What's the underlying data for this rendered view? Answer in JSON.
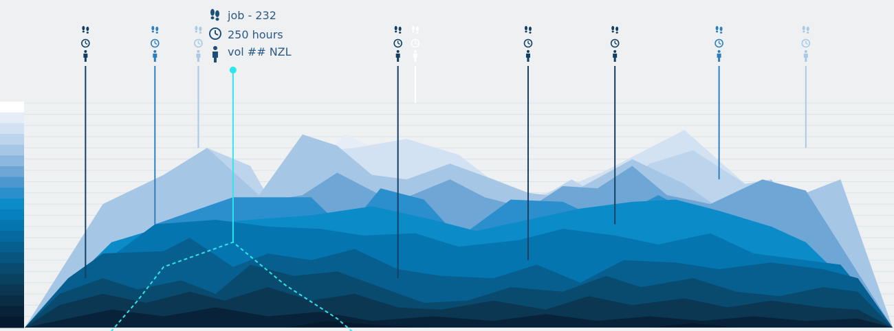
{
  "colors": {
    "background": "#eef0f2",
    "highlight": "#2ee6ee",
    "marker_dark": "#123f63",
    "marker_mid": "#2f7fbf",
    "marker_light": "#a9c9e6",
    "marker_white": "#ffffff",
    "palette": [
      "#ffffff",
      "#e5edf7",
      "#d2e2f2",
      "#bcd4ec",
      "#a6c6e6",
      "#8cb7de",
      "#6ea6d6",
      "#4d97cf",
      "#2a8fcc",
      "#0b8cc8",
      "#0680bf",
      "#0575b0",
      "#066aa0",
      "#075f90",
      "#08557f",
      "#094b6f",
      "#0a4160",
      "#0b3752",
      "#0a2d45",
      "#082339",
      "#051a2c"
    ]
  },
  "icons": {
    "footsteps": "footsteps-icon",
    "clock": "clock-icon",
    "person": "person-icon"
  },
  "tooltip": {
    "job": "job - 232",
    "hours": "250 hours",
    "volume": "vol ## NZL"
  },
  "chart_data": {
    "type": "area",
    "title": "",
    "xlabel": "",
    "ylabel": "",
    "grid": true,
    "legend": "left color scale (21 shades)",
    "ylim": [
      0,
      100
    ],
    "xlim": [
      0,
      100
    ],
    "series": [
      {
        "color_index": 1,
        "points": [
          [
            0,
            0
          ],
          [
            13,
            18
          ],
          [
            25,
            38
          ],
          [
            31,
            53
          ],
          [
            34,
            75
          ],
          [
            37,
            86
          ],
          [
            40,
            80
          ],
          [
            43,
            63
          ],
          [
            47,
            57
          ],
          [
            53,
            48
          ],
          [
            57,
            43
          ],
          [
            61,
            57
          ],
          [
            63,
            47
          ],
          [
            68,
            47
          ],
          [
            74,
            63
          ],
          [
            79,
            54
          ],
          [
            85,
            28
          ],
          [
            91,
            42
          ],
          [
            100,
            0
          ]
        ]
      },
      {
        "color_index": 2,
        "points": [
          [
            0,
            0
          ],
          [
            20,
            22
          ],
          [
            28,
            52
          ],
          [
            35,
            79
          ],
          [
            38,
            80
          ],
          [
            44,
            84
          ],
          [
            50,
            77
          ],
          [
            54,
            65
          ],
          [
            58,
            58
          ],
          [
            62,
            62
          ],
          [
            67,
            70
          ],
          [
            71,
            78
          ],
          [
            76,
            88
          ],
          [
            83,
            64
          ],
          [
            88,
            60
          ],
          [
            100,
            0
          ]
        ]
      },
      {
        "color_index": 3,
        "points": [
          [
            0,
            0
          ],
          [
            12,
            54
          ],
          [
            21,
            80
          ],
          [
            26,
            72
          ],
          [
            30,
            45
          ],
          [
            38,
            57
          ],
          [
            44,
            43
          ],
          [
            50,
            56
          ],
          [
            56,
            50
          ],
          [
            63,
            66
          ],
          [
            67,
            57
          ],
          [
            72,
            73
          ],
          [
            77,
            79
          ],
          [
            83,
            64
          ],
          [
            86,
            66
          ],
          [
            92,
            37
          ],
          [
            100,
            0
          ]
        ]
      },
      {
        "color_index": 4,
        "points": [
          [
            0,
            0
          ],
          [
            9,
            55
          ],
          [
            16,
            68
          ],
          [
            21,
            80
          ],
          [
            27,
            59
          ],
          [
            32,
            86
          ],
          [
            36,
            81
          ],
          [
            40,
            68
          ],
          [
            44,
            66
          ],
          [
            49,
            73
          ],
          [
            54,
            66
          ],
          [
            58,
            60
          ],
          [
            62,
            58
          ],
          [
            70,
            75
          ],
          [
            76,
            64
          ],
          [
            83,
            45
          ],
          [
            86,
            66
          ],
          [
            88,
            57
          ],
          [
            94,
            66
          ],
          [
            100,
            0
          ]
        ]
      },
      {
        "color_index": 6,
        "points": [
          [
            0,
            0
          ],
          [
            10,
            30
          ],
          [
            20,
            46
          ],
          [
            26,
            55
          ],
          [
            32,
            59
          ],
          [
            36,
            69
          ],
          [
            41,
            59
          ],
          [
            44,
            58
          ],
          [
            49,
            66
          ],
          [
            53,
            58
          ],
          [
            58,
            53
          ],
          [
            62,
            63
          ],
          [
            66,
            62
          ],
          [
            70,
            72
          ],
          [
            74,
            59
          ],
          [
            79,
            55
          ],
          [
            85,
            66
          ],
          [
            90,
            61
          ],
          [
            100,
            0
          ]
        ]
      },
      {
        "color_index": 8,
        "points": [
          [
            0,
            0
          ],
          [
            8,
            20
          ],
          [
            15,
            46
          ],
          [
            24,
            58
          ],
          [
            33,
            58
          ],
          [
            37,
            43
          ],
          [
            41,
            62
          ],
          [
            46,
            57
          ],
          [
            50,
            40
          ],
          [
            56,
            57
          ],
          [
            62,
            56
          ],
          [
            67,
            47
          ],
          [
            73,
            59
          ],
          [
            79,
            47
          ],
          [
            83,
            32
          ],
          [
            90,
            13
          ],
          [
            100,
            0
          ]
        ]
      },
      {
        "color_index": 9,
        "points": [
          [
            0,
            0
          ],
          [
            10,
            38
          ],
          [
            16,
            45
          ],
          [
            20,
            46
          ],
          [
            26,
            48
          ],
          [
            33,
            50
          ],
          [
            40,
            54
          ],
          [
            47,
            48
          ],
          [
            52,
            43
          ],
          [
            58,
            48
          ],
          [
            64,
            53
          ],
          [
            70,
            56
          ],
          [
            75,
            57
          ],
          [
            80,
            52
          ],
          [
            86,
            45
          ],
          [
            90,
            38
          ],
          [
            100,
            0
          ]
        ]
      },
      {
        "color_index": 11,
        "points": [
          [
            0,
            0
          ],
          [
            8,
            26
          ],
          [
            15,
            46
          ],
          [
            22,
            48
          ],
          [
            28,
            45
          ],
          [
            34,
            44
          ],
          [
            39,
            41
          ],
          [
            45,
            42
          ],
          [
            50,
            36
          ],
          [
            57,
            39
          ],
          [
            62,
            44
          ],
          [
            68,
            41
          ],
          [
            73,
            37
          ],
          [
            79,
            42
          ],
          [
            84,
            33
          ],
          [
            90,
            30
          ],
          [
            94,
            28
          ],
          [
            100,
            0
          ]
        ]
      },
      {
        "color_index": 13,
        "points": [
          [
            0,
            0
          ],
          [
            5,
            22
          ],
          [
            9,
            33
          ],
          [
            16,
            34
          ],
          [
            19,
            40
          ],
          [
            24,
            27
          ],
          [
            28,
            33
          ],
          [
            33,
            30
          ],
          [
            38,
            35
          ],
          [
            43,
            26
          ],
          [
            48,
            23
          ],
          [
            54,
            22
          ],
          [
            59,
            28
          ],
          [
            64,
            20
          ],
          [
            69,
            30
          ],
          [
            75,
            29
          ],
          [
            80,
            26
          ],
          [
            86,
            29
          ],
          [
            92,
            26
          ],
          [
            96,
            22
          ],
          [
            100,
            0
          ]
        ]
      },
      {
        "color_index": 15,
        "points": [
          [
            0,
            0
          ],
          [
            4,
            15
          ],
          [
            9,
            22
          ],
          [
            13,
            17
          ],
          [
            18,
            21
          ],
          [
            22,
            15
          ],
          [
            26,
            28
          ],
          [
            31,
            23
          ],
          [
            36,
            25
          ],
          [
            41,
            18
          ],
          [
            46,
            11
          ],
          [
            51,
            12
          ],
          [
            56,
            18
          ],
          [
            62,
            16
          ],
          [
            67,
            23
          ],
          [
            71,
            18
          ],
          [
            77,
            22
          ],
          [
            82,
            16
          ],
          [
            87,
            14
          ],
          [
            92,
            18
          ],
          [
            96,
            16
          ],
          [
            100,
            0
          ]
        ]
      },
      {
        "color_index": 17,
        "points": [
          [
            0,
            0
          ],
          [
            4,
            10
          ],
          [
            9,
            15
          ],
          [
            14,
            11
          ],
          [
            19,
            16
          ],
          [
            23,
            12
          ],
          [
            28,
            18
          ],
          [
            33,
            12
          ],
          [
            38,
            15
          ],
          [
            43,
            9
          ],
          [
            48,
            8
          ],
          [
            54,
            12
          ],
          [
            60,
            8
          ],
          [
            65,
            14
          ],
          [
            70,
            10
          ],
          [
            76,
            13
          ],
          [
            81,
            9
          ],
          [
            86,
            12
          ],
          [
            92,
            9
          ],
          [
            96,
            8
          ],
          [
            100,
            0
          ]
        ]
      },
      {
        "color_index": 19,
        "points": [
          [
            0,
            0
          ],
          [
            5,
            4
          ],
          [
            10,
            8
          ],
          [
            16,
            5
          ],
          [
            22,
            9
          ],
          [
            28,
            5
          ],
          [
            34,
            7
          ],
          [
            40,
            3
          ],
          [
            47,
            5
          ],
          [
            54,
            3
          ],
          [
            60,
            6
          ],
          [
            66,
            3
          ],
          [
            72,
            5
          ],
          [
            78,
            3
          ],
          [
            84,
            5
          ],
          [
            90,
            3
          ],
          [
            96,
            4
          ],
          [
            100,
            0
          ]
        ]
      },
      {
        "color_index": 20,
        "points": [
          [
            0,
            0
          ],
          [
            30,
            0
          ],
          [
            35,
            3
          ],
          [
            41,
            1
          ],
          [
            47,
            0
          ],
          [
            72,
            0
          ],
          [
            77,
            2
          ],
          [
            82,
            0
          ],
          [
            100,
            0
          ]
        ]
      }
    ],
    "markers": [
      {
        "x": 7,
        "y": 22,
        "shade": "dark"
      },
      {
        "x": 15,
        "y": 46,
        "shade": "mid"
      },
      {
        "x": 20,
        "y": 80,
        "shade": "light"
      },
      {
        "x": 24,
        "y": 38,
        "shade": "highlight"
      },
      {
        "x": 43,
        "y": 22,
        "shade": "dark"
      },
      {
        "x": 45,
        "y": 100,
        "shade": "white"
      },
      {
        "x": 58,
        "y": 30,
        "shade": "dark"
      },
      {
        "x": 68,
        "y": 46,
        "shade": "dark"
      },
      {
        "x": 80,
        "y": 66,
        "shade": "mid"
      },
      {
        "x": 90,
        "y": 80,
        "shade": "light"
      }
    ],
    "highlight_path": [
      [
        9,
        -6
      ],
      [
        13,
        12
      ],
      [
        16,
        27
      ],
      [
        24,
        38
      ],
      [
        30,
        19
      ],
      [
        36,
        4
      ],
      [
        39,
        -6
      ]
    ]
  }
}
